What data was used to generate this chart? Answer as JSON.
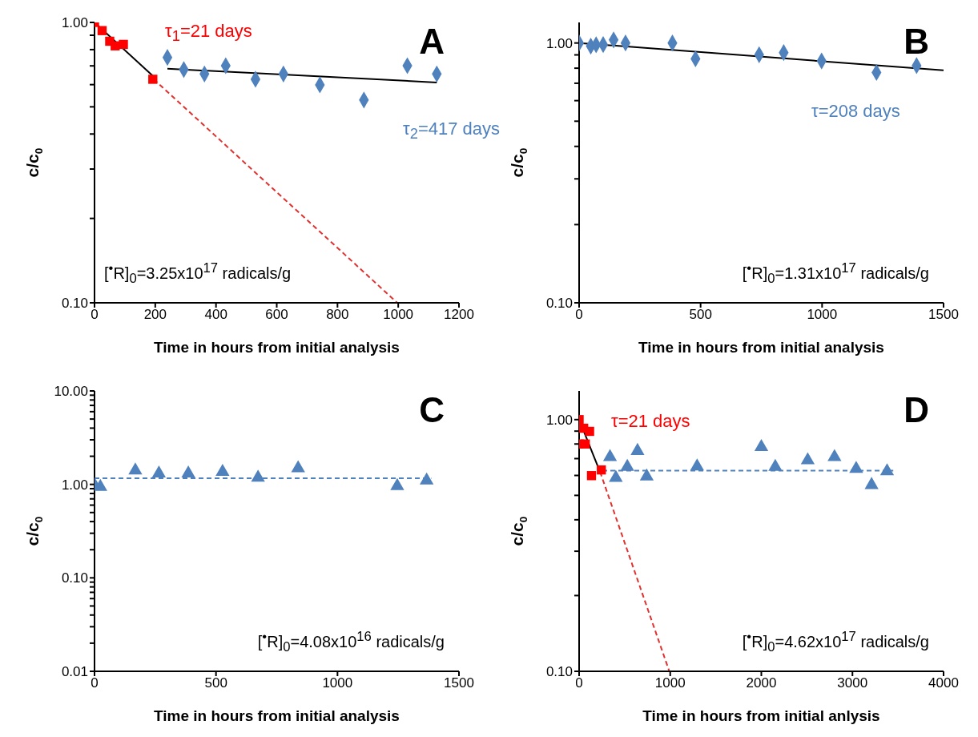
{
  "chart_data": [
    {
      "type": "scatter",
      "xlabel": "Time in hours from initial analysis",
      "ylabel": "c/c$_{0}$",
      "log": "y",
      "xlim": [
        0,
        1200
      ],
      "xticks": [
        0,
        200,
        400,
        600,
        800,
        1000,
        1200
      ],
      "ylim": [
        0.1,
        1
      ],
      "yticks": [
        {
          "value": 0.1,
          "label": "0.10"
        },
        {
          "value": 0.2,
          "label": null
        },
        {
          "value": 0.3,
          "label": null
        },
        {
          "value": 0.4,
          "label": null
        },
        {
          "value": 0.5,
          "label": null
        },
        {
          "value": 0.6,
          "label": null
        },
        {
          "value": 0.7,
          "label": null
        },
        {
          "value": 0.8,
          "label": null
        },
        {
          "value": 0.9,
          "label": null
        },
        {
          "value": 1,
          "label": "1.00"
        }
      ],
      "annotations": [
        "A",
        "[$^{•}$R]$_{0}$=3.25x10$^{17}$ radicals/g",
        "τ$_{1}$=21 days",
        "τ$_{2}$=417 days"
      ],
      "series": [
        {
          "type": "scatter",
          "marker": "square",
          "color": "#ff0000",
          "x": [
            0,
            25,
            50,
            68,
            95,
            192
          ],
          "values": [
            1.0,
            0.935,
            0.857,
            0.825,
            0.835,
            0.627
          ]
        },
        {
          "type": "scatter",
          "marker": "diamond",
          "color": "#4f81bd",
          "x": [
            240,
            294,
            362,
            432,
            530,
            622,
            742,
            887,
            1030,
            1127
          ],
          "values": [
            0.75,
            0.679,
            0.655,
            0.701,
            0.627,
            0.655,
            0.599,
            0.529,
            0.701,
            0.655
          ]
        },
        {
          "type": "line",
          "color": "#000000",
          "line_style": "solid",
          "x": [
            0,
            195
          ],
          "values": [
            1.0,
            0.64
          ]
        },
        {
          "type": "line",
          "color": "#000000",
          "line_style": "solid",
          "x": [
            240,
            1127
          ],
          "values": [
            0.684,
            0.611
          ]
        },
        {
          "type": "line",
          "color": "#e0312f",
          "line_style": "dashed",
          "x": [
            195,
            997
          ],
          "values": [
            0.627,
            0.1
          ]
        }
      ]
    },
    {
      "type": "scatter",
      "xlabel": "Time in hours from initial analysis",
      "ylabel": "c/c$_{0}$",
      "log": "y",
      "xlim": [
        0,
        1500
      ],
      "xticks": [
        0,
        500,
        1000,
        1500
      ],
      "ylim": [
        0.1,
        1.2
      ],
      "yticks": [
        {
          "value": 0.1,
          "label": "0.10"
        },
        {
          "value": 0.2,
          "label": null
        },
        {
          "value": 0.3,
          "label": null
        },
        {
          "value": 0.4,
          "label": null
        },
        {
          "value": 0.5,
          "label": null
        },
        {
          "value": 0.6,
          "label": null
        },
        {
          "value": 0.7,
          "label": null
        },
        {
          "value": 0.8,
          "label": null
        },
        {
          "value": 0.9,
          "label": null
        },
        {
          "value": 1,
          "label": "1.00"
        }
      ],
      "annotations": [
        "B",
        "[$^{•}$R]$_{0}$=1.31x10$^{17}$ radicals/g",
        "τ=208 days"
      ],
      "series": [
        {
          "type": "scatter",
          "marker": "diamond",
          "color": "#4f81bd",
          "x": [
            0,
            48,
            70,
            99,
            142,
            191,
            384,
            479,
            741,
            842,
            998,
            1224,
            1389
          ],
          "values": [
            1.0,
            0.973,
            0.984,
            0.986,
            1.028,
            1.0,
            1.0,
            0.869,
            0.901,
            0.918,
            0.853,
            0.77,
            0.818
          ]
        },
        {
          "type": "line",
          "color": "#000000",
          "line_style": "solid",
          "x": [
            0,
            1500
          ],
          "values": [
            1.0,
            0.785
          ]
        }
      ]
    },
    {
      "type": "scatter",
      "xlabel": "Time in hours from initial analysis",
      "ylabel": "c/c$_{0}$",
      "log": "y",
      "xlim": [
        0,
        1500
      ],
      "xticks": [
        0,
        500,
        1000,
        1500
      ],
      "ylim": [
        0.01,
        10
      ],
      "yticks": [
        {
          "value": 0.01,
          "label": "0.01"
        },
        {
          "value": 0.02,
          "label": null
        },
        {
          "value": 0.03,
          "label": null
        },
        {
          "value": 0.04,
          "label": null
        },
        {
          "value": 0.05,
          "label": null
        },
        {
          "value": 0.06,
          "label": null
        },
        {
          "value": 0.07,
          "label": null
        },
        {
          "value": 0.08,
          "label": null
        },
        {
          "value": 0.09,
          "label": null
        },
        {
          "value": 0.1,
          "label": "0.10"
        },
        {
          "value": 0.2,
          "label": null
        },
        {
          "value": 0.3,
          "label": null
        },
        {
          "value": 0.4,
          "label": null
        },
        {
          "value": 0.5,
          "label": null
        },
        {
          "value": 0.6,
          "label": null
        },
        {
          "value": 0.7,
          "label": null
        },
        {
          "value": 0.8,
          "label": null
        },
        {
          "value": 0.9,
          "label": null
        },
        {
          "value": 1,
          "label": "1.00"
        },
        {
          "value": 2,
          "label": null
        },
        {
          "value": 3,
          "label": null
        },
        {
          "value": 4,
          "label": null
        },
        {
          "value": 5,
          "label": null
        },
        {
          "value": 6,
          "label": null
        },
        {
          "value": 7,
          "label": null
        },
        {
          "value": 8,
          "label": null
        },
        {
          "value": 9,
          "label": null
        },
        {
          "value": 10,
          "label": "10.00"
        }
      ],
      "annotations": [
        "C",
        "[$^{•}$R]$_{0}$=4.08x10$^{16}$ radicals/g"
      ],
      "series": [
        {
          "type": "scatter",
          "marker": "triangle",
          "color": "#4f81bd",
          "x": [
            0,
            24,
            168,
            265,
            386,
            527,
            673,
            838,
            1246,
            1367
          ],
          "values": [
            0.985,
            0.94,
            1.41,
            1.31,
            1.31,
            1.36,
            1.18,
            1.49,
            0.96,
            1.1
          ]
        },
        {
          "type": "line",
          "color": "#4f81bd",
          "line_style": "dashed",
          "x": [
            0,
            1386
          ],
          "values": [
            1.165,
            1.165
          ]
        }
      ]
    },
    {
      "type": "scatter",
      "xlabel": "Time in hours from initial anlysis",
      "ylabel": "c/c$_{0}$",
      "log": "y",
      "xlim": [
        0,
        4000
      ],
      "xticks": [
        0,
        1000,
        2000,
        3000,
        4000
      ],
      "ylim": [
        0.1,
        1.3
      ],
      "yticks": [
        {
          "value": 0.1,
          "label": "0.10"
        },
        {
          "value": 0.2,
          "label": null
        },
        {
          "value": 0.3,
          "label": null
        },
        {
          "value": 0.4,
          "label": null
        },
        {
          "value": 0.5,
          "label": null
        },
        {
          "value": 0.6,
          "label": null
        },
        {
          "value": 0.7,
          "label": null
        },
        {
          "value": 0.8,
          "label": null
        },
        {
          "value": 0.9,
          "label": null
        },
        {
          "value": 1,
          "label": "1.00"
        }
      ],
      "annotations": [
        "D",
        "[$^{•}$R]$_{0}$=4.62x10$^{17}$ radicals/g",
        "τ=21 days"
      ],
      "series": [
        {
          "type": "scatter",
          "marker": "square",
          "color": "#ff0000",
          "x": [
            0,
            50,
            115,
            0,
            68,
            136,
            244
          ],
          "values": [
            1.0,
            0.924,
            0.898,
            0.8,
            0.8,
            0.599,
            0.631
          ]
        },
        {
          "type": "scatter",
          "marker": "triangle",
          "color": "#4f81bd",
          "x": [
            339,
            403,
            529,
            641,
            742,
            1295,
            2000,
            2153,
            2509,
            2803,
            3041,
            3210,
            3380
          ],
          "values": [
            0.71,
            0.587,
            0.649,
            0.751,
            0.595,
            0.652,
            0.779,
            0.649,
            0.69,
            0.71,
            0.637,
            0.55,
            0.624
          ]
        },
        {
          "type": "line",
          "color": "#000000",
          "line_style": "solid",
          "x": [
            0,
            230
          ],
          "values": [
            1.0,
            0.62
          ]
        },
        {
          "type": "line",
          "color": "#e0312f",
          "line_style": "dashed",
          "x": [
            230,
            990
          ],
          "values": [
            0.62,
            0.1
          ]
        },
        {
          "type": "line",
          "color": "#4f81bd",
          "line_style": "dashed",
          "x": [
            255,
            3448
          ],
          "values": [
            0.627,
            0.627
          ]
        }
      ]
    }
  ]
}
